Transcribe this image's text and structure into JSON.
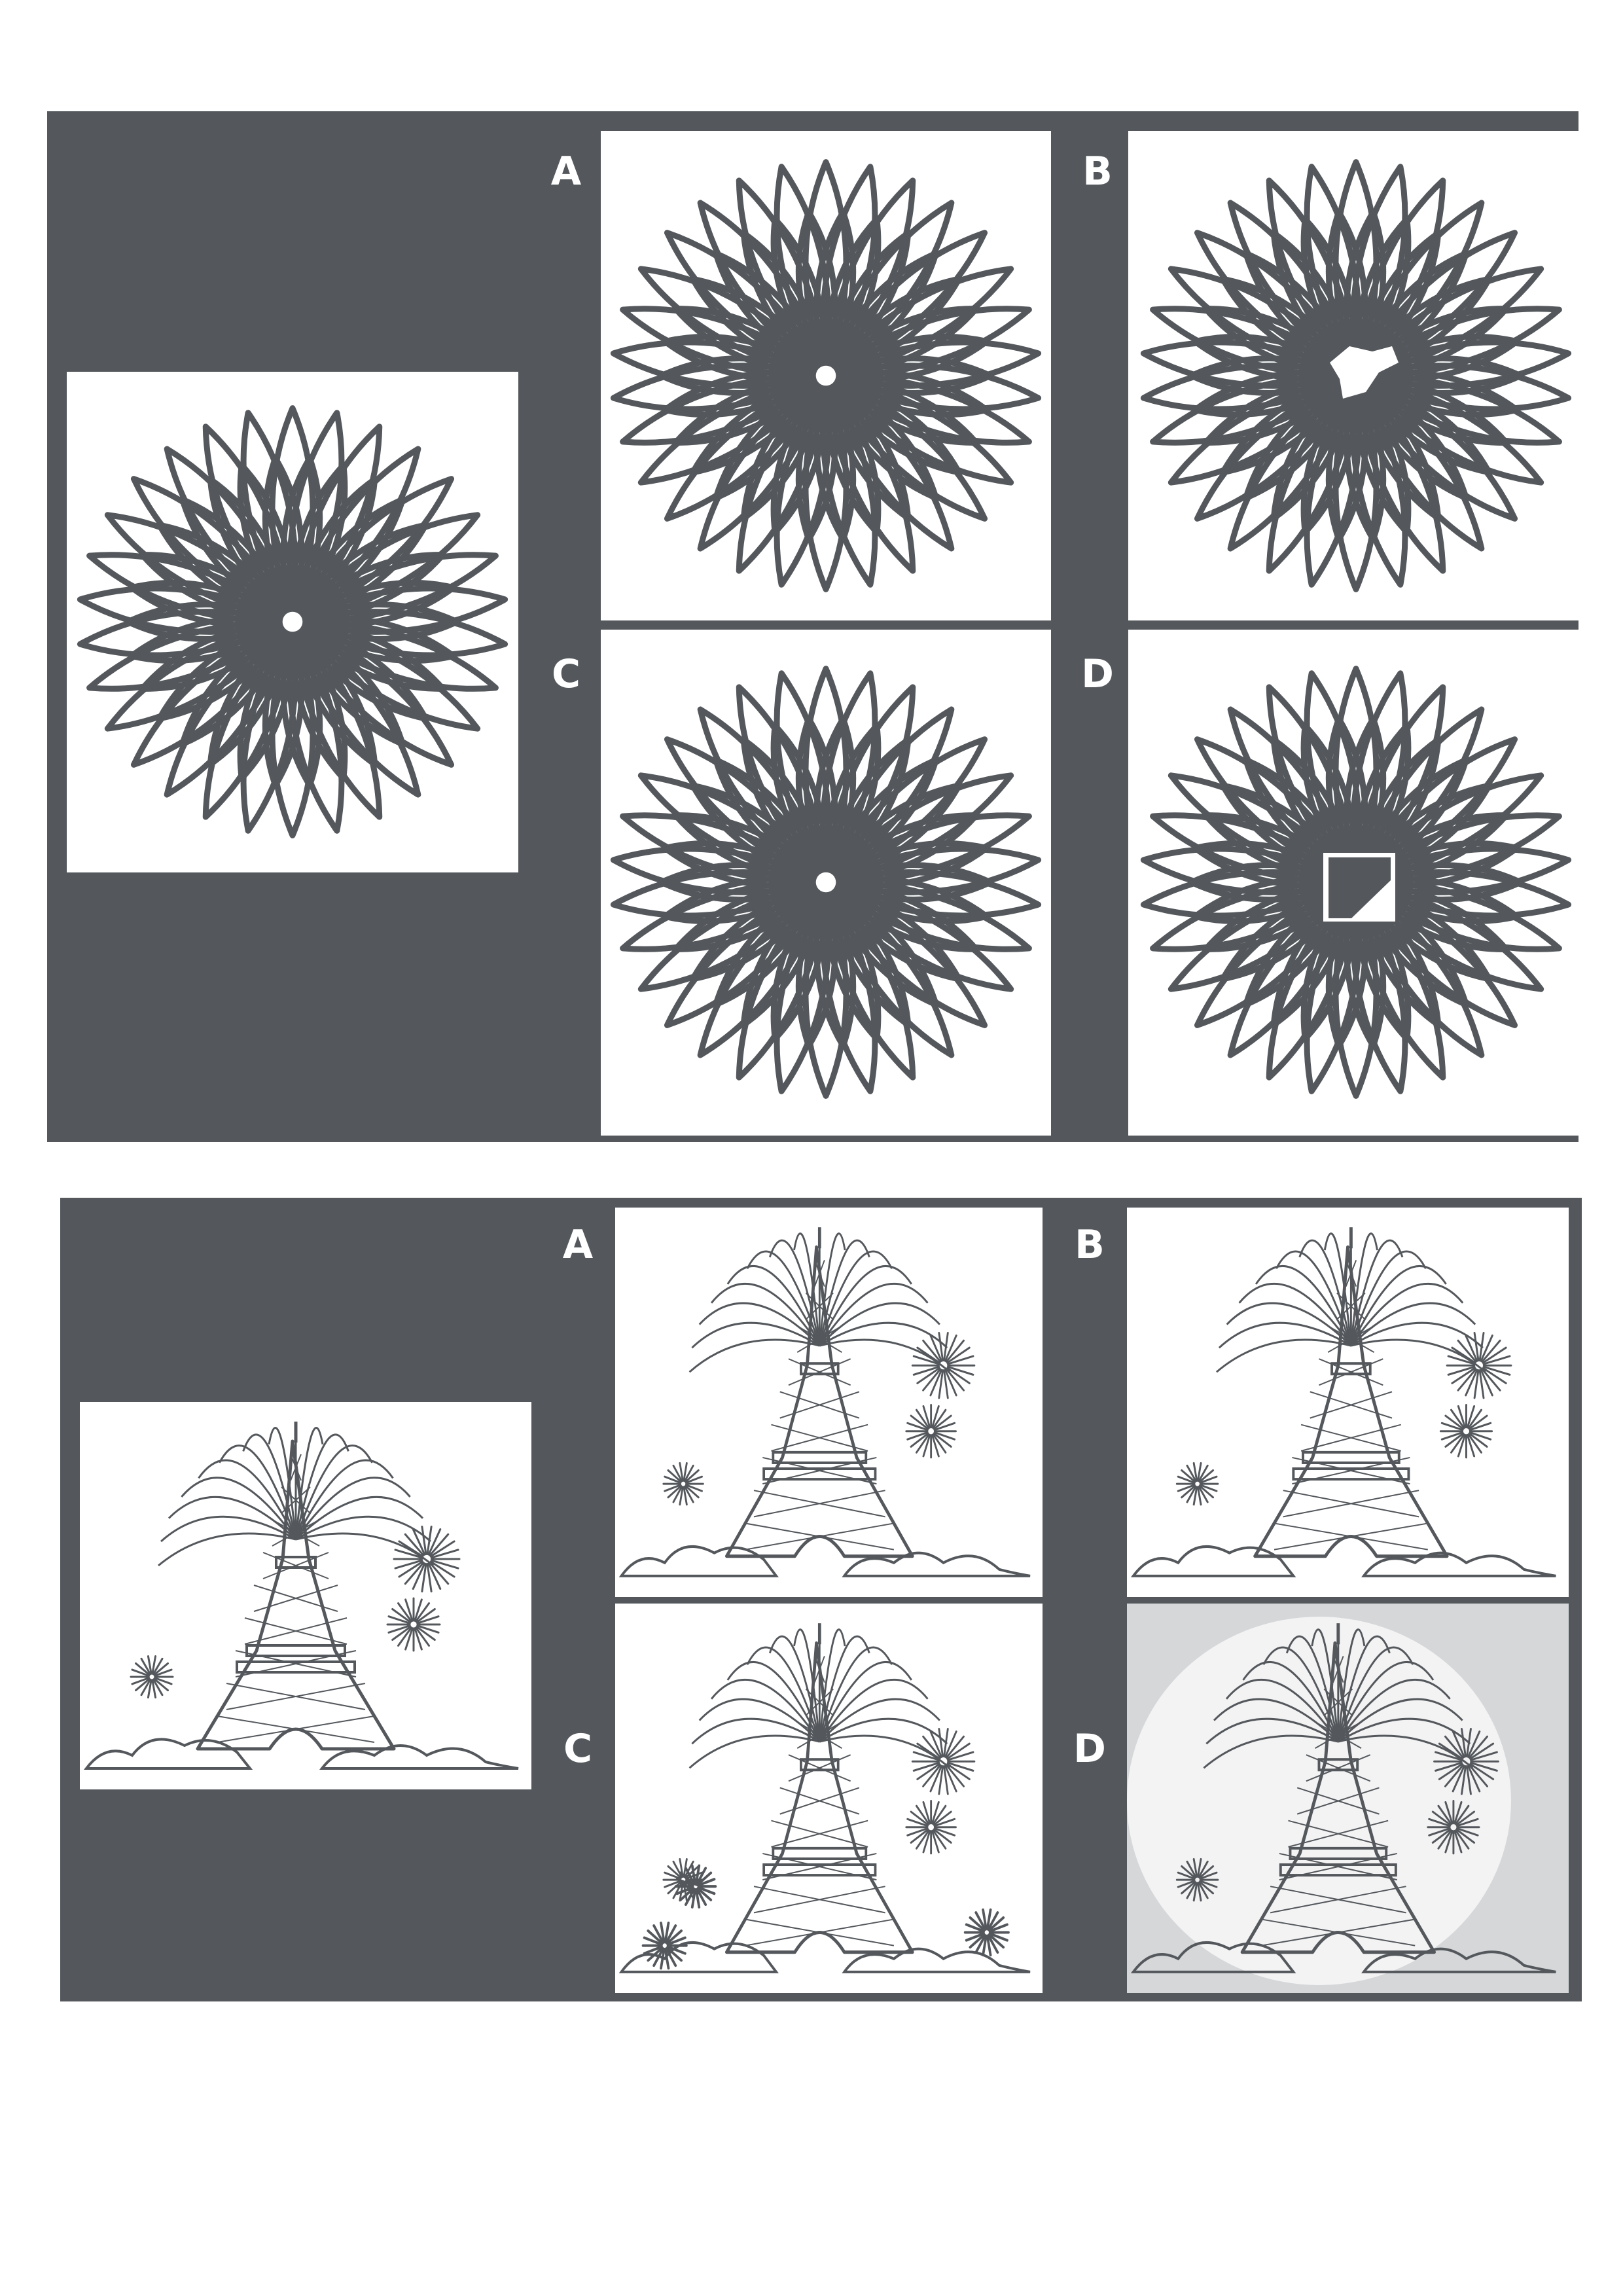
{
  "colors": {
    "panel": "#54585c",
    "line": "#54585c",
    "card": "#ffffff",
    "label": "#ffffff"
  },
  "puzzle1": {
    "name": "flower-puzzle",
    "reference_icon": "rosette-icon",
    "options": [
      {
        "letter": "A",
        "center": "white-speck"
      },
      {
        "letter": "B",
        "center": "torn-patch"
      },
      {
        "letter": "C",
        "center": "white-speck"
      },
      {
        "letter": "D",
        "center": "square-patch"
      }
    ]
  },
  "puzzle2": {
    "name": "tower-puzzle",
    "reference_icon": "eiffel-tower-fireworks-icon",
    "options": [
      {
        "letter": "A",
        "variant": "sparse"
      },
      {
        "letter": "B",
        "variant": "shifted"
      },
      {
        "letter": "C",
        "variant": "extra-fireworks"
      },
      {
        "letter": "D",
        "variant": "grey-background"
      }
    ]
  }
}
